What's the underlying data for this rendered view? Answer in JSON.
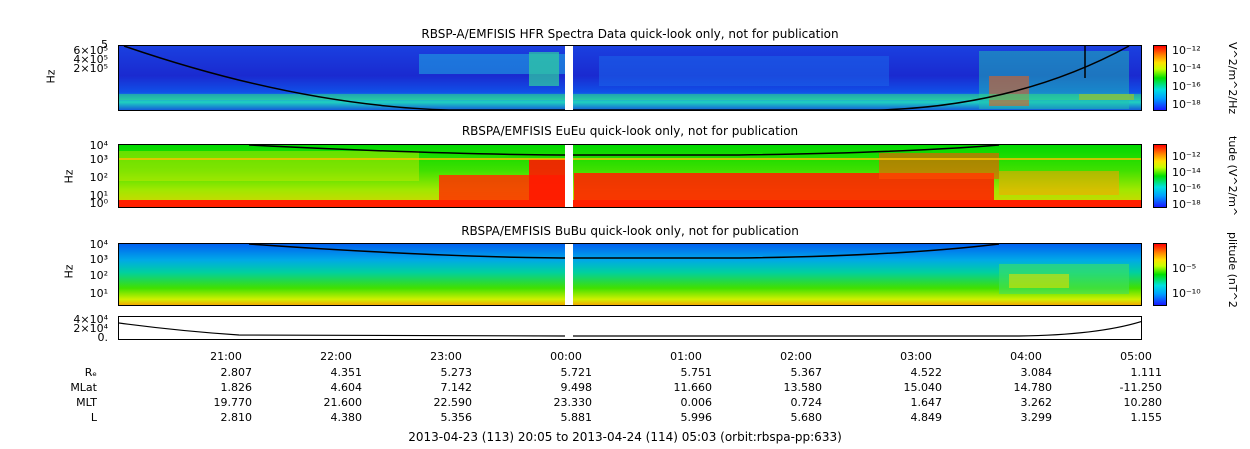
{
  "chart_data": [
    {
      "type": "heatmap",
      "title": "RBSP-A/EMFISIS  HFR Spectra Data quick-look only, not for publication",
      "ylabel": "Hz",
      "ytick_labels": [
        "5",
        "6×10⁵",
        "4×10⁵",
        "2×10⁵"
      ],
      "colorbar_label": "V^2/m^2/Hz",
      "colorbar_ticks": [
        "10⁻¹²",
        "10⁻¹⁴",
        "10⁻¹⁶",
        "10⁻¹⁸"
      ]
    },
    {
      "type": "heatmap",
      "title": "RBSPA/EMFISIS  EuEu quick-look only, not for publication",
      "ylabel": "Hz",
      "ytick_labels": [
        "10⁴",
        "10³",
        "10²",
        "10¹",
        "10⁰"
      ],
      "colorbar_label": "tude (V^2/m^",
      "colorbar_ticks": [
        "10⁻¹²",
        "10⁻¹⁴",
        "10⁻¹⁶",
        "10⁻¹⁸"
      ]
    },
    {
      "type": "heatmap",
      "title": "RBSPA/EMFISIS  BuBu quick-look only, not for publication",
      "ylabel": "Hz",
      "ytick_labels": [
        "10⁴",
        "10³",
        "10²",
        "10¹"
      ],
      "colorbar_label": "plitude (nT^2",
      "colorbar_ticks": [
        "10⁻⁵",
        "10⁻¹⁰"
      ]
    },
    {
      "type": "line",
      "ytick_labels": [
        "4×10⁴",
        "2×10⁴",
        "0."
      ]
    }
  ],
  "x_axis": {
    "tick_labels": [
      "21:00",
      "22:00",
      "23:00",
      "00:00",
      "01:00",
      "02:00",
      "03:00",
      "04:00",
      "05:00"
    ]
  },
  "ephemeris": [
    {
      "label": "Rₑ",
      "values": [
        "2.807",
        "4.351",
        "5.273",
        "5.721",
        "5.751",
        "5.367",
        "4.522",
        "3.084",
        "1.111"
      ]
    },
    {
      "label": "MLat",
      "values": [
        "1.826",
        "4.604",
        "7.142",
        "9.498",
        "11.660",
        "13.580",
        "15.040",
        "14.780",
        "-11.250"
      ]
    },
    {
      "label": "MLT",
      "values": [
        "19.770",
        "21.600",
        "22.590",
        "23.330",
        "0.006",
        "0.724",
        "1.647",
        "3.262",
        "10.280"
      ]
    },
    {
      "label": "L",
      "values": [
        "2.810",
        "4.380",
        "5.356",
        "5.881",
        "5.996",
        "5.680",
        "4.849",
        "3.299",
        "1.155"
      ]
    }
  ],
  "footer": "2013-04-23 (113) 20:05 to 2013-04-24 (114) 05:03 (orbit:rbspa-pp:633)"
}
